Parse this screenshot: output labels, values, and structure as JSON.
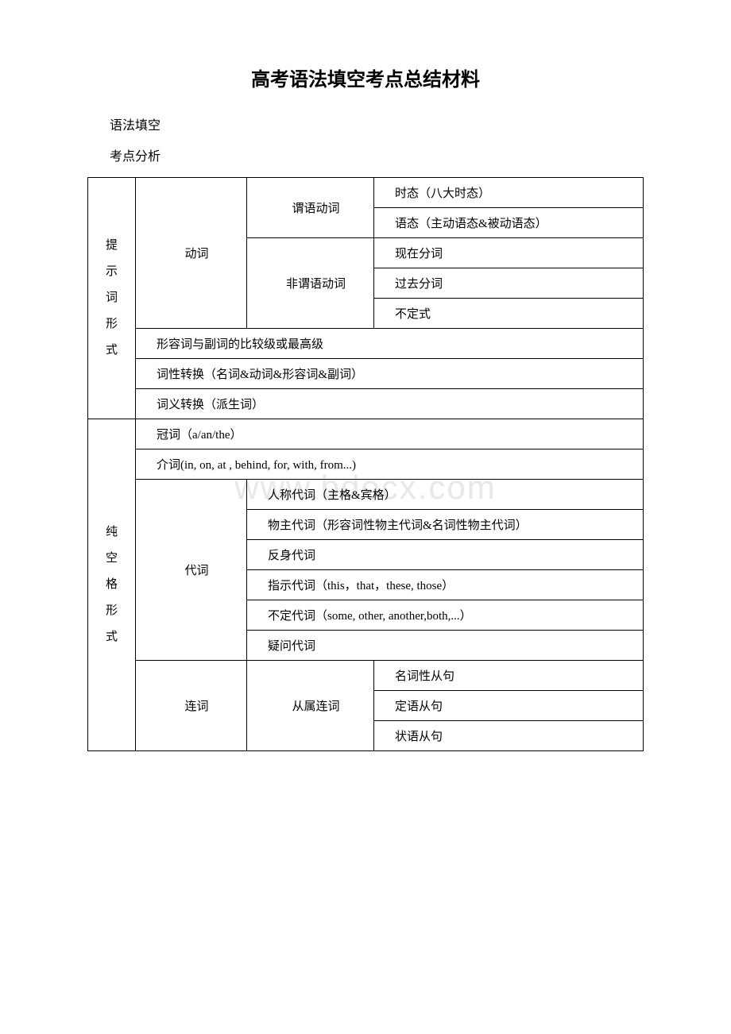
{
  "title": "高考语法填空考点总结材料",
  "subtitles": [
    "语法填空",
    "考点分析"
  ],
  "watermark": "www.bdocx.com",
  "section1": {
    "label": "提\n示\n词\n形\n式",
    "verb": {
      "label": "动词",
      "predicate": {
        "label": "谓语动词",
        "tense": "时态（八大时态）",
        "voice": "语态（主动语态&被动语态）"
      },
      "nonpredicate": {
        "label": "非谓语动词",
        "present": "现在分词",
        "past": "过去分词",
        "infinitive": "不定式"
      }
    },
    "comparative": "形容词与副词的比较级或最高级",
    "pos": "词性转换（名词&动词&形容词&副词）",
    "meaning": "词义转换（派生词）"
  },
  "section2": {
    "label": "纯\n空\n格\n形\n式",
    "article": "冠词（a/an/the）",
    "preposition": "介词(in, on, at , behind, for, with, from...)",
    "pronoun": {
      "label": "代词",
      "personal": "人称代词（主格&宾格）",
      "possessive": "物主代词（形容词性物主代词&名词性物主代词）",
      "reflexive": "反身代词",
      "demonstrative": "指示代词（this，that，these, those）",
      "indefinite": "不定代词（some, other, another,both,...）",
      "interrogative": "疑问代词"
    },
    "conjunction": {
      "label": "连词",
      "subordinate": {
        "label": "从属连词",
        "noun": "名词性从句",
        "attributive": "定语从句",
        "adverbial": "状语从句"
      }
    }
  }
}
